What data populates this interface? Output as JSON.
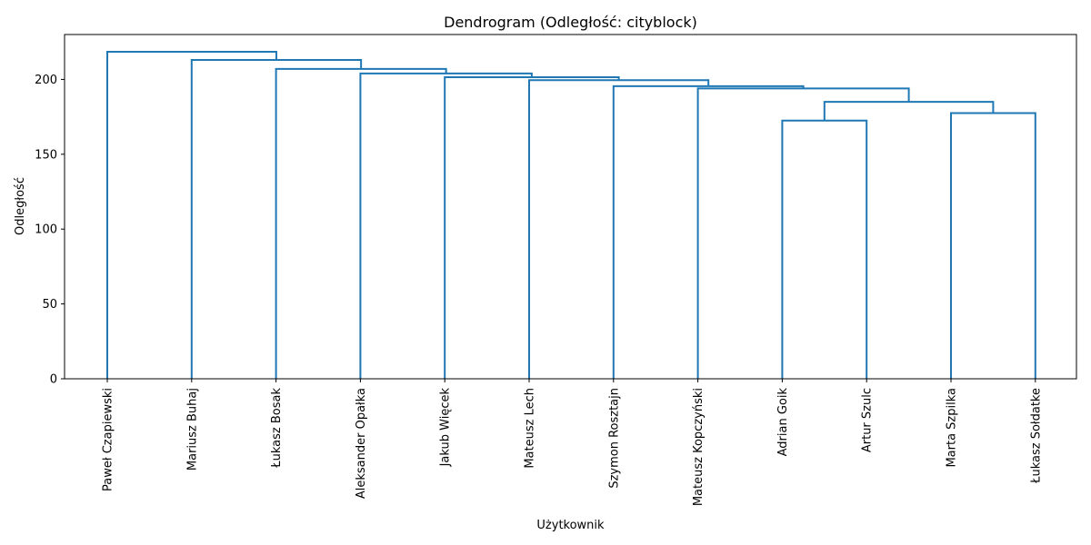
{
  "chart_data": {
    "type": "dendrogram",
    "title": "Dendrogram (Odległość: cityblock)",
    "xlabel": "Użytkownik",
    "ylabel": "Odległość",
    "ylim": [
      0,
      230
    ],
    "yticks": [
      0,
      50,
      100,
      150,
      200
    ],
    "grid": false,
    "color": "#1f77b4",
    "leaves": [
      "Paweł Czapiewski",
      "Mariusz Buhaj",
      "Łukasz Bosak",
      "Aleksander Opałka",
      "Jakub Więcek",
      "Mateusz Lech",
      "Szymon Rosztajn",
      "Mateusz Kopczyński",
      "Adrian Goik",
      "Artur Szulc",
      "Marta Szpilka",
      "Łukasz Sołdatke"
    ],
    "merges": [
      {
        "left": "leaf:8",
        "right": "leaf:9",
        "height": 172.5
      },
      {
        "left": "leaf:10",
        "right": "leaf:11",
        "height": 177.5
      },
      {
        "left": "merge:0",
        "right": "merge:1",
        "height": 185
      },
      {
        "left": "leaf:7",
        "right": "merge:2",
        "height": 194
      },
      {
        "left": "leaf:6",
        "right": "merge:3",
        "height": 195.5
      },
      {
        "left": "leaf:5",
        "right": "merge:4",
        "height": 199.5
      },
      {
        "left": "leaf:4",
        "right": "merge:5",
        "height": 201.5
      },
      {
        "left": "leaf:3",
        "right": "merge:6",
        "height": 204
      },
      {
        "left": "leaf:2",
        "right": "merge:7",
        "height": 207
      },
      {
        "left": "leaf:1",
        "right": "merge:8",
        "height": 213
      },
      {
        "left": "leaf:0",
        "right": "merge:9",
        "height": 218.5
      }
    ]
  }
}
